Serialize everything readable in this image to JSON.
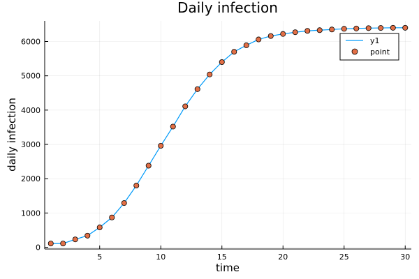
{
  "chart_data": {
    "type": "line",
    "title": "Daily infection",
    "xlabel": "time",
    "ylabel": "daily infection",
    "xlim": [
      0.5,
      30.5
    ],
    "ylim": [
      -50,
      6600
    ],
    "xticks": [
      5,
      10,
      15,
      20,
      25,
      30
    ],
    "yticks": [
      0,
      1000,
      2000,
      3000,
      4000,
      5000,
      6000
    ],
    "grid": true,
    "legend_position": "top-right",
    "x": [
      1,
      2,
      3,
      4,
      5,
      6,
      7,
      8,
      9,
      10,
      11,
      12,
      13,
      14,
      15,
      16,
      17,
      18,
      19,
      20,
      21,
      22,
      23,
      24,
      25,
      26,
      27,
      28,
      29,
      30
    ],
    "series": [
      {
        "name": "y1",
        "kind": "line",
        "color": "#009af9",
        "values": [
          110,
          110,
          230,
          340,
          580,
          870,
          1290,
          1800,
          2380,
          2960,
          3520,
          4110,
          4610,
          5040,
          5400,
          5700,
          5890,
          6060,
          6160,
          6220,
          6270,
          6310,
          6330,
          6350,
          6370,
          6380,
          6390,
          6395,
          6400,
          6400
        ]
      },
      {
        "name": "point",
        "kind": "scatter",
        "color": "#e26f46",
        "values": [
          110,
          110,
          230,
          340,
          580,
          870,
          1290,
          1800,
          2380,
          2960,
          3520,
          4110,
          4610,
          5040,
          5400,
          5700,
          5890,
          6060,
          6160,
          6220,
          6270,
          6310,
          6330,
          6350,
          6370,
          6380,
          6390,
          6395,
          6400,
          6400
        ]
      }
    ]
  }
}
